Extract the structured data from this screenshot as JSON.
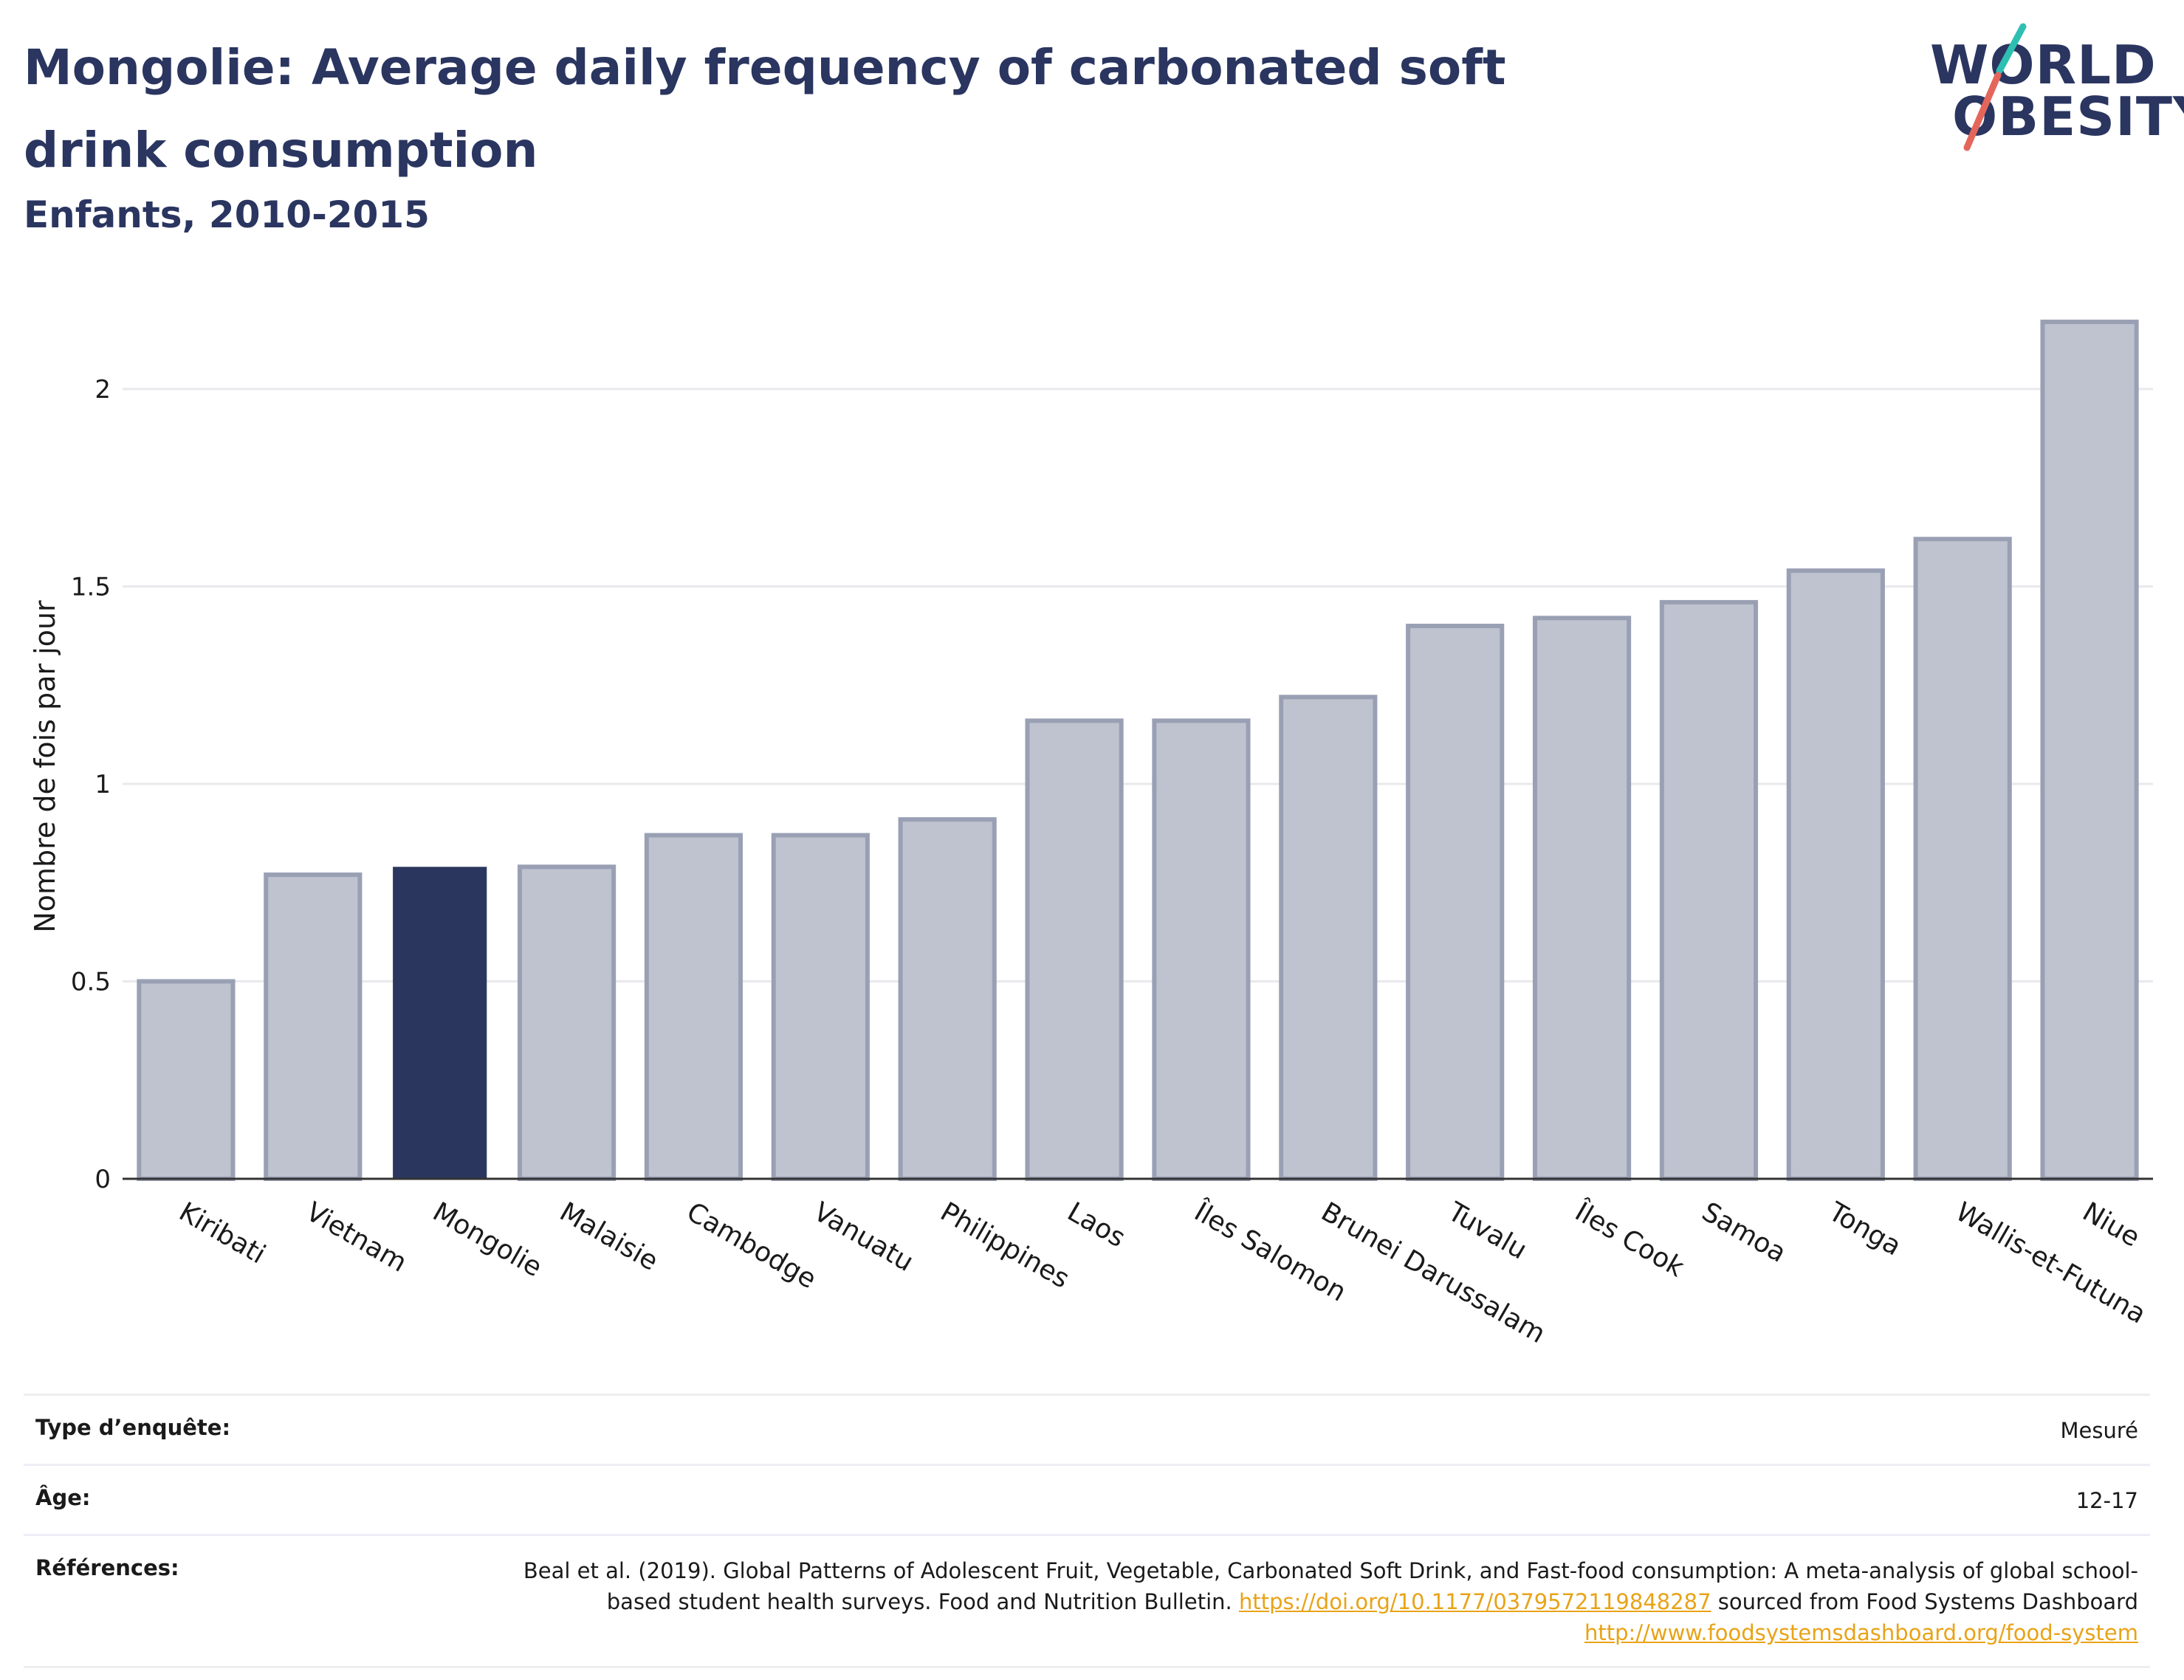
{
  "header": {
    "title": "Mongolie: Average daily frequency of carbonated soft drink consumption",
    "subtitle": "Enfants, 2010-2015"
  },
  "logo": {
    "line1": "WORLD",
    "line2": "OBESITY",
    "accent_colors": [
      "#2ebfb3",
      "#e4665b"
    ]
  },
  "colors": {
    "highlight": "#2b365e",
    "bar_fill": "#bfc3cf",
    "bar_stroke": "#9aa0b4",
    "grid": "#e9e9ee",
    "axis": "#333333",
    "link": "#e8a317"
  },
  "chart_data": {
    "type": "bar",
    "title": "Mongolie: Average daily frequency of carbonated soft drink consumption",
    "subtitle": "Enfants, 2010-2015",
    "ylabel": "Nombre de fois par jour",
    "xlabel": "",
    "ylim": [
      0,
      2.2
    ],
    "yticks": [
      0,
      0.5,
      1,
      1.5,
      2
    ],
    "ytick_labels": [
      "0",
      "0.5",
      "1",
      "1.5",
      "2"
    ],
    "grid": true,
    "highlight": "Mongolie",
    "categories": [
      "Kiribati",
      "Vietnam",
      "Mongolie",
      "Malaisie",
      "Cambodge",
      "Vanuatu",
      "Philippines",
      "Laos",
      "Îles Salomon",
      "Brunei Darussalam",
      "Tuvalu",
      "Îles Cook",
      "Samoa",
      "Tonga",
      "Wallis-et-Futuna",
      "Niue"
    ],
    "values": [
      0.5,
      0.77,
      0.79,
      0.79,
      0.87,
      0.87,
      0.91,
      1.16,
      1.16,
      1.22,
      1.4,
      1.42,
      1.46,
      1.54,
      1.62,
      2.17
    ]
  },
  "info": [
    {
      "key": "Type d’enquête:",
      "value": "Mesuré"
    },
    {
      "key": "Âge:",
      "value": "12-17"
    },
    {
      "key": "Références:",
      "value_text1": "Beal et al. (2019). Global Patterns of Adolescent Fruit, Vegetable, Carbonated Soft Drink, and Fast-food consumption: A meta-analysis of global school-based student health surveys. Food and Nutrition Bulletin. ",
      "link1": "https://doi.org/10.1177/0379572119848287",
      "value_text2": " sourced from Food Systems Dashboard ",
      "link2": "http://www.foodsystemsdashboard.org/food-system"
    }
  ]
}
